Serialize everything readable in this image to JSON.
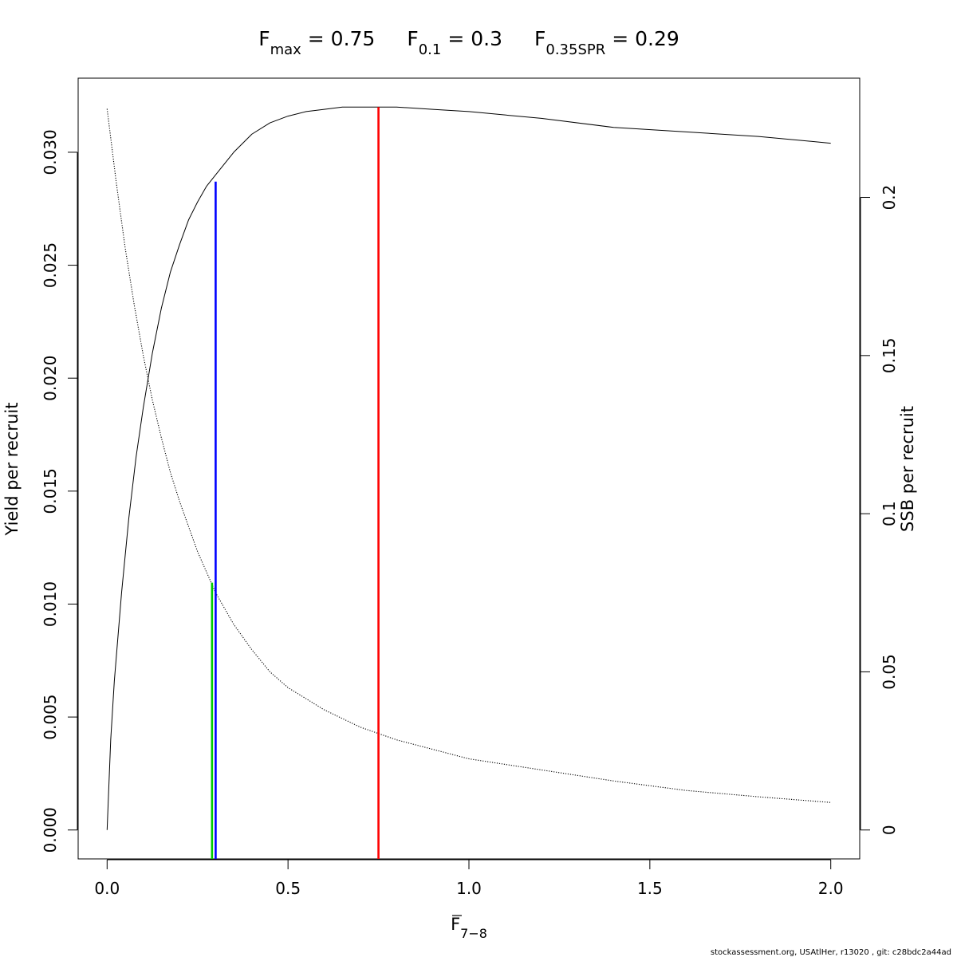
{
  "chart_data": {
    "type": "line",
    "title": {
      "fmax": {
        "base": "F",
        "sub": "max",
        "value": " = 0.75"
      },
      "f01": {
        "base": "F",
        "sub": "0.1",
        "value": " = 0.3"
      },
      "fspr": {
        "base": "F",
        "sub": "0.35SPR",
        "value": " = 0.29"
      }
    },
    "xlabel": {
      "base": "F",
      "sub": "7−8"
    },
    "ylabel": "Yield per recruit",
    "y2label": "SSB per recruit",
    "xlim": [
      -0.08,
      2.08
    ],
    "ylim": [
      -0.00128,
      0.03328
    ],
    "y2lim": [
      -0.00914,
      0.2377
    ],
    "x_ticks": [
      {
        "value": 0.0,
        "label": "0.0"
      },
      {
        "value": 0.5,
        "label": "0.5"
      },
      {
        "value": 1.0,
        "label": "1.0"
      },
      {
        "value": 1.5,
        "label": "1.5"
      },
      {
        "value": 2.0,
        "label": "2.0"
      }
    ],
    "y_ticks": [
      {
        "value": 0.0,
        "label": "0.000"
      },
      {
        "value": 0.005,
        "label": "0.005"
      },
      {
        "value": 0.01,
        "label": "0.010"
      },
      {
        "value": 0.015,
        "label": "0.015"
      },
      {
        "value": 0.02,
        "label": "0.020"
      },
      {
        "value": 0.025,
        "label": "0.025"
      },
      {
        "value": 0.03,
        "label": "0.030"
      }
    ],
    "y2_ticks": [
      {
        "value": 0,
        "label": "0"
      },
      {
        "value": 0.05,
        "label": "0.05"
      },
      {
        "value": 0.1,
        "label": "0.1"
      },
      {
        "value": 0.15,
        "label": "0.15"
      },
      {
        "value": 0.2,
        "label": "0.2"
      }
    ],
    "series": [
      {
        "axis": "left",
        "style": "solid",
        "color": "#000000",
        "x": [
          0,
          0.01,
          0.02,
          0.04,
          0.06,
          0.08,
          0.1,
          0.125,
          0.15,
          0.175,
          0.2,
          0.225,
          0.25,
          0.275,
          0.3,
          0.35,
          0.4,
          0.45,
          0.5,
          0.55,
          0.6,
          0.65,
          0.7,
          0.75,
          0.8,
          0.9,
          1.0,
          1.2,
          1.4,
          1.6,
          1.8,
          2.0
        ],
        "values": [
          0,
          0.004,
          0.0066,
          0.0105,
          0.0138,
          0.0165,
          0.0187,
          0.0211,
          0.0231,
          0.0247,
          0.0259,
          0.027,
          0.0278,
          0.0285,
          0.029,
          0.03,
          0.0308,
          0.0313,
          0.0316,
          0.0318,
          0.0319,
          0.032,
          0.032,
          0.032,
          0.032,
          0.0319,
          0.0318,
          0.0315,
          0.0311,
          0.0309,
          0.0307,
          0.0304
        ]
      },
      {
        "axis": "right",
        "style": "dotted",
        "color": "#000000",
        "x": [
          0,
          0.025,
          0.05,
          0.075,
          0.1,
          0.125,
          0.15,
          0.175,
          0.2,
          0.25,
          0.3,
          0.35,
          0.4,
          0.45,
          0.5,
          0.6,
          0.7,
          0.8,
          0.9,
          1.0,
          1.2,
          1.4,
          1.6,
          1.8,
          2.0
        ],
        "values": [
          0.228,
          0.205,
          0.184,
          0.166,
          0.15,
          0.136,
          0.124,
          0.113,
          0.104,
          0.088,
          0.075,
          0.065,
          0.057,
          0.05,
          0.045,
          0.038,
          0.0325,
          0.0285,
          0.0255,
          0.0225,
          0.019,
          0.0155,
          0.0125,
          0.0105,
          0.0087
        ]
      }
    ],
    "reference_lines": [
      {
        "name": "F0.35SPR",
        "x": 0.29,
        "axis": "right",
        "y_top": 0.0782,
        "color": "#00cc00"
      },
      {
        "name": "F0.1",
        "x": 0.3,
        "axis": "left",
        "y_top": 0.0287,
        "color": "#0000ff"
      },
      {
        "name": "Fmax",
        "x": 0.75,
        "axis": "left",
        "y_top": 0.032,
        "color": "#ff0000"
      }
    ],
    "grid": false,
    "legend": "none"
  },
  "footer": "stockassessment.org, USAtlHer, r13020 , git: c28bdc2a44ad"
}
